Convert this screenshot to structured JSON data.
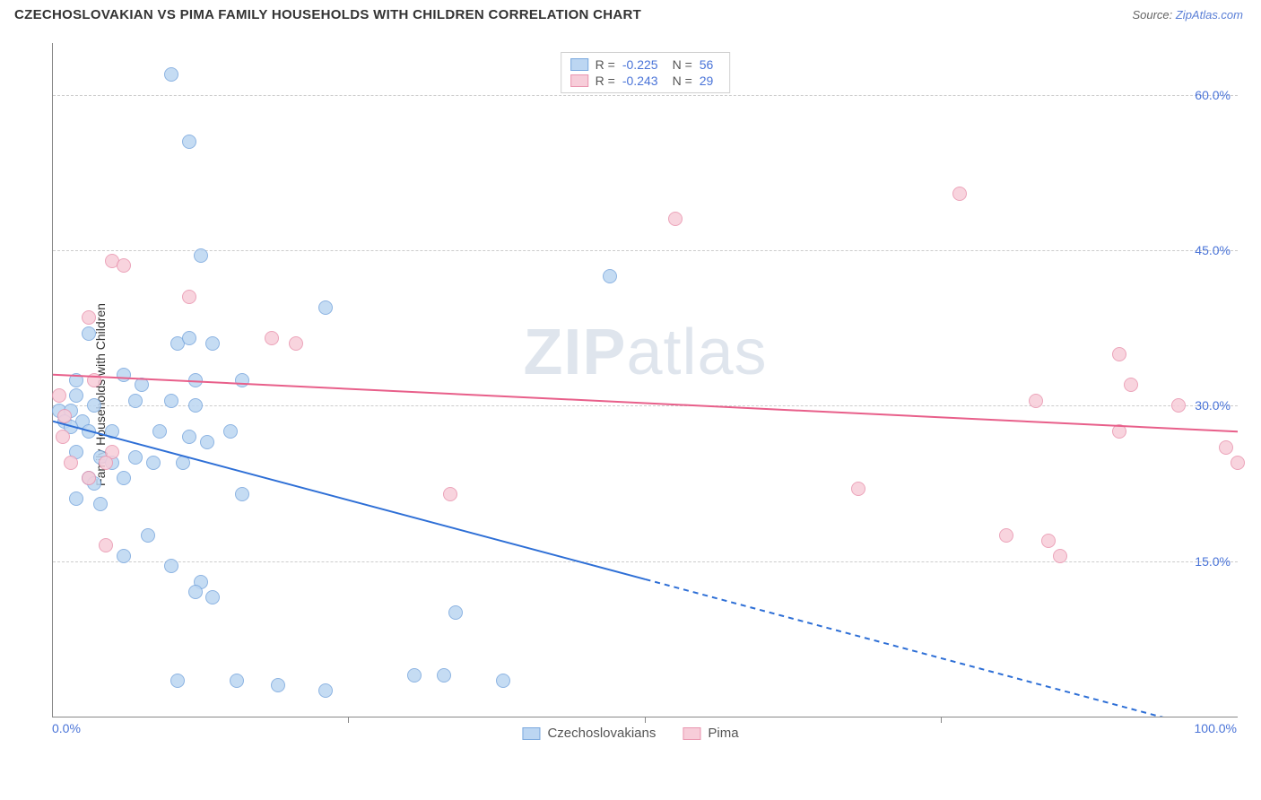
{
  "header": {
    "title": "CZECHOSLOVAKIAN VS PIMA FAMILY HOUSEHOLDS WITH CHILDREN CORRELATION CHART",
    "source_prefix": "Source: ",
    "source_link": "ZipAtlas.com"
  },
  "watermark": {
    "zip": "ZIP",
    "atlas": "atlas"
  },
  "chart": {
    "type": "scatter",
    "ylabel": "Family Households with Children",
    "xlim": [
      0,
      100
    ],
    "ylim": [
      0,
      65
    ],
    "background_color": "#ffffff",
    "grid_color": "#cccccc",
    "axis_color": "#888888",
    "label_color": "#4a74d8",
    "yticks": [
      {
        "value": 15,
        "label": "15.0%"
      },
      {
        "value": 30,
        "label": "30.0%"
      },
      {
        "value": 45,
        "label": "45.0%"
      },
      {
        "value": 60,
        "label": "60.0%"
      }
    ],
    "xticks": [
      {
        "value": 0,
        "label": "0.0%",
        "align": "left",
        "show_mark": false
      },
      {
        "value": 25,
        "label": "",
        "show_mark": true
      },
      {
        "value": 50,
        "label": "",
        "show_mark": true
      },
      {
        "value": 75,
        "label": "",
        "show_mark": true
      },
      {
        "value": 100,
        "label": "100.0%",
        "align": "right",
        "show_mark": false
      }
    ],
    "series": [
      {
        "name": "Czechoslovakians",
        "marker_color_fill": "#bcd6f2",
        "marker_color_stroke": "#7aa8de",
        "marker_radius": 8,
        "R": "-0.225",
        "N": "56",
        "line": {
          "color": "#2e6fd6",
          "width": 2,
          "x1": 0,
          "y1": 28.5,
          "x2": 100,
          "y2": -2.0,
          "solid_until_x": 50
        },
        "points": [
          {
            "x": 10.0,
            "y": 62.0
          },
          {
            "x": 11.5,
            "y": 55.5
          },
          {
            "x": 12.5,
            "y": 44.5
          },
          {
            "x": 47.0,
            "y": 42.5
          },
          {
            "x": 23.0,
            "y": 39.5
          },
          {
            "x": 3.0,
            "y": 37.0
          },
          {
            "x": 10.5,
            "y": 36.0
          },
          {
            "x": 11.5,
            "y": 36.5
          },
          {
            "x": 13.5,
            "y": 36.0
          },
          {
            "x": 6.0,
            "y": 33.0
          },
          {
            "x": 7.5,
            "y": 32.0
          },
          {
            "x": 12.0,
            "y": 32.5
          },
          {
            "x": 16.0,
            "y": 32.5
          },
          {
            "x": 2.0,
            "y": 31.0
          },
          {
            "x": 7.0,
            "y": 30.5
          },
          {
            "x": 10.0,
            "y": 30.5
          },
          {
            "x": 12.0,
            "y": 30.0
          },
          {
            "x": 0.5,
            "y": 29.5
          },
          {
            "x": 1.5,
            "y": 29.5
          },
          {
            "x": 1.0,
            "y": 28.5
          },
          {
            "x": 2.5,
            "y": 28.5
          },
          {
            "x": 1.5,
            "y": 28.0
          },
          {
            "x": 3.0,
            "y": 27.5
          },
          {
            "x": 5.0,
            "y": 27.5
          },
          {
            "x": 9.0,
            "y": 27.5
          },
          {
            "x": 11.5,
            "y": 27.0
          },
          {
            "x": 15.0,
            "y": 27.5
          },
          {
            "x": 13.0,
            "y": 26.5
          },
          {
            "x": 2.0,
            "y": 25.5
          },
          {
            "x": 4.0,
            "y": 25.0
          },
          {
            "x": 5.0,
            "y": 24.5
          },
          {
            "x": 7.0,
            "y": 25.0
          },
          {
            "x": 8.5,
            "y": 24.5
          },
          {
            "x": 11.0,
            "y": 24.5
          },
          {
            "x": 3.0,
            "y": 23.0
          },
          {
            "x": 3.5,
            "y": 22.5
          },
          {
            "x": 6.0,
            "y": 23.0
          },
          {
            "x": 2.0,
            "y": 21.0
          },
          {
            "x": 4.0,
            "y": 20.5
          },
          {
            "x": 16.0,
            "y": 21.5
          },
          {
            "x": 8.0,
            "y": 17.5
          },
          {
            "x": 6.0,
            "y": 15.5
          },
          {
            "x": 10.0,
            "y": 14.5
          },
          {
            "x": 12.5,
            "y": 13.0
          },
          {
            "x": 12.0,
            "y": 12.0
          },
          {
            "x": 13.5,
            "y": 11.5
          },
          {
            "x": 34.0,
            "y": 10.0
          },
          {
            "x": 30.5,
            "y": 4.0
          },
          {
            "x": 33.0,
            "y": 4.0
          },
          {
            "x": 10.5,
            "y": 3.5
          },
          {
            "x": 15.5,
            "y": 3.5
          },
          {
            "x": 19.0,
            "y": 3.0
          },
          {
            "x": 38.0,
            "y": 3.5
          },
          {
            "x": 23.0,
            "y": 2.5
          },
          {
            "x": 2.0,
            "y": 32.5
          },
          {
            "x": 3.5,
            "y": 30.0
          }
        ]
      },
      {
        "name": "Pima",
        "marker_color_fill": "#f7cdd9",
        "marker_color_stroke": "#e995af",
        "marker_radius": 8,
        "R": "-0.243",
        "N": "29",
        "line": {
          "color": "#e85f8a",
          "width": 2,
          "x1": 0,
          "y1": 33.0,
          "x2": 100,
          "y2": 27.5,
          "solid_until_x": 100
        },
        "points": [
          {
            "x": 76.5,
            "y": 50.5
          },
          {
            "x": 52.5,
            "y": 48.0
          },
          {
            "x": 5.0,
            "y": 44.0
          },
          {
            "x": 6.0,
            "y": 43.5
          },
          {
            "x": 11.5,
            "y": 40.5
          },
          {
            "x": 3.0,
            "y": 38.5
          },
          {
            "x": 18.5,
            "y": 36.5
          },
          {
            "x": 20.5,
            "y": 36.0
          },
          {
            "x": 90.0,
            "y": 35.0
          },
          {
            "x": 3.5,
            "y": 32.5
          },
          {
            "x": 91.0,
            "y": 32.0
          },
          {
            "x": 83.0,
            "y": 30.5
          },
          {
            "x": 95.0,
            "y": 30.0
          },
          {
            "x": 1.0,
            "y": 29.0
          },
          {
            "x": 90.0,
            "y": 27.5
          },
          {
            "x": 0.8,
            "y": 27.0
          },
          {
            "x": 99.0,
            "y": 26.0
          },
          {
            "x": 5.0,
            "y": 25.5
          },
          {
            "x": 1.5,
            "y": 24.5
          },
          {
            "x": 4.5,
            "y": 24.5
          },
          {
            "x": 100.0,
            "y": 24.5
          },
          {
            "x": 3.0,
            "y": 23.0
          },
          {
            "x": 68.0,
            "y": 22.0
          },
          {
            "x": 33.5,
            "y": 21.5
          },
          {
            "x": 80.5,
            "y": 17.5
          },
          {
            "x": 84.0,
            "y": 17.0
          },
          {
            "x": 4.5,
            "y": 16.5
          },
          {
            "x": 85.0,
            "y": 15.5
          },
          {
            "x": 0.5,
            "y": 31.0
          }
        ]
      }
    ]
  },
  "legend_top": {
    "r_label": "R =",
    "n_label": "N ="
  },
  "legend_bottom": {
    "items": [
      "Czechoslovakians",
      "Pima"
    ]
  }
}
